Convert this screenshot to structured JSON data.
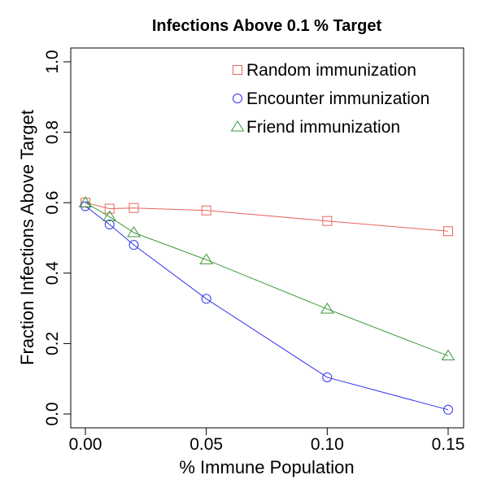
{
  "chart_data": {
    "type": "line",
    "title": "Infections Above  0.1 % Target",
    "xlabel": "% Immune Population",
    "ylabel": "Fraction Infections Above Target",
    "xlim": [
      0.0,
      0.15
    ],
    "ylim": [
      0.0,
      1.0
    ],
    "x_ticks": [
      0.0,
      0.05,
      0.1,
      0.15
    ],
    "x_tick_labels": [
      "0.00",
      "0.05",
      "0.10",
      "0.15"
    ],
    "y_ticks": [
      0.0,
      0.2,
      0.4,
      0.6,
      0.8,
      1.0
    ],
    "y_tick_labels": [
      "0.0",
      "0.2",
      "0.4",
      "0.6",
      "0.8",
      "1.0"
    ],
    "grid": false,
    "legend_position": "top-right",
    "x": [
      0.0,
      0.01,
      0.02,
      0.05,
      0.1,
      0.15
    ],
    "series": [
      {
        "name": "Random immunization",
        "color": "#e8665e",
        "marker": "square",
        "values": [
          0.6,
          0.583,
          0.585,
          0.578,
          0.548,
          0.519
        ]
      },
      {
        "name": "Encounter immunization",
        "color": "#3333ee",
        "marker": "circle",
        "values": [
          0.59,
          0.538,
          0.48,
          0.327,
          0.104,
          0.012
        ]
      },
      {
        "name": "Friend immunization",
        "color": "#3a9a3a",
        "marker": "triangle",
        "values": [
          0.6,
          0.56,
          0.515,
          0.438,
          0.298,
          0.165
        ]
      }
    ]
  }
}
